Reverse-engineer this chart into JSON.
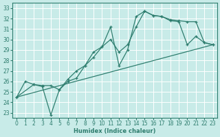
{
  "xlabel": "Humidex (Indice chaleur)",
  "background_color": "#c8ebe8",
  "grid_color": "#ffffff",
  "line_color": "#2e7d6e",
  "xlim": [
    -0.5,
    23.5
  ],
  "ylim": [
    22.5,
    33.5
  ],
  "xticks": [
    0,
    1,
    2,
    3,
    4,
    5,
    6,
    7,
    8,
    9,
    10,
    11,
    12,
    13,
    14,
    15,
    16,
    17,
    18,
    19,
    20,
    21,
    22,
    23
  ],
  "yticks": [
    23,
    24,
    25,
    26,
    27,
    28,
    29,
    30,
    31,
    32,
    33
  ],
  "line1_x": [
    0,
    1,
    2,
    3,
    4,
    5,
    6,
    7,
    8,
    9,
    10,
    11,
    12,
    13,
    14,
    15,
    16,
    17,
    18,
    19,
    20,
    21,
    22,
    23
  ],
  "line1_y": [
    24.5,
    26.0,
    25.7,
    25.5,
    22.8,
    25.2,
    26.0,
    26.3,
    27.5,
    28.8,
    29.3,
    31.2,
    27.5,
    29.0,
    32.2,
    32.7,
    32.3,
    32.2,
    31.8,
    31.7,
    29.5,
    30.3,
    29.7,
    29.5
  ],
  "line2_x": [
    0,
    2,
    3,
    4,
    5,
    6,
    7,
    8,
    9,
    10,
    11,
    12,
    13,
    14,
    15,
    16,
    17,
    18,
    19,
    20,
    21,
    22,
    23
  ],
  "line2_y": [
    24.5,
    25.7,
    25.6,
    25.6,
    25.2,
    26.2,
    27.0,
    27.5,
    28.3,
    29.3,
    30.0,
    28.8,
    29.5,
    31.2,
    32.7,
    32.3,
    32.2,
    31.9,
    31.8,
    31.7,
    31.7,
    29.7,
    29.5
  ],
  "line3_x": [
    0,
    23
  ],
  "line3_y": [
    24.5,
    29.5
  ]
}
